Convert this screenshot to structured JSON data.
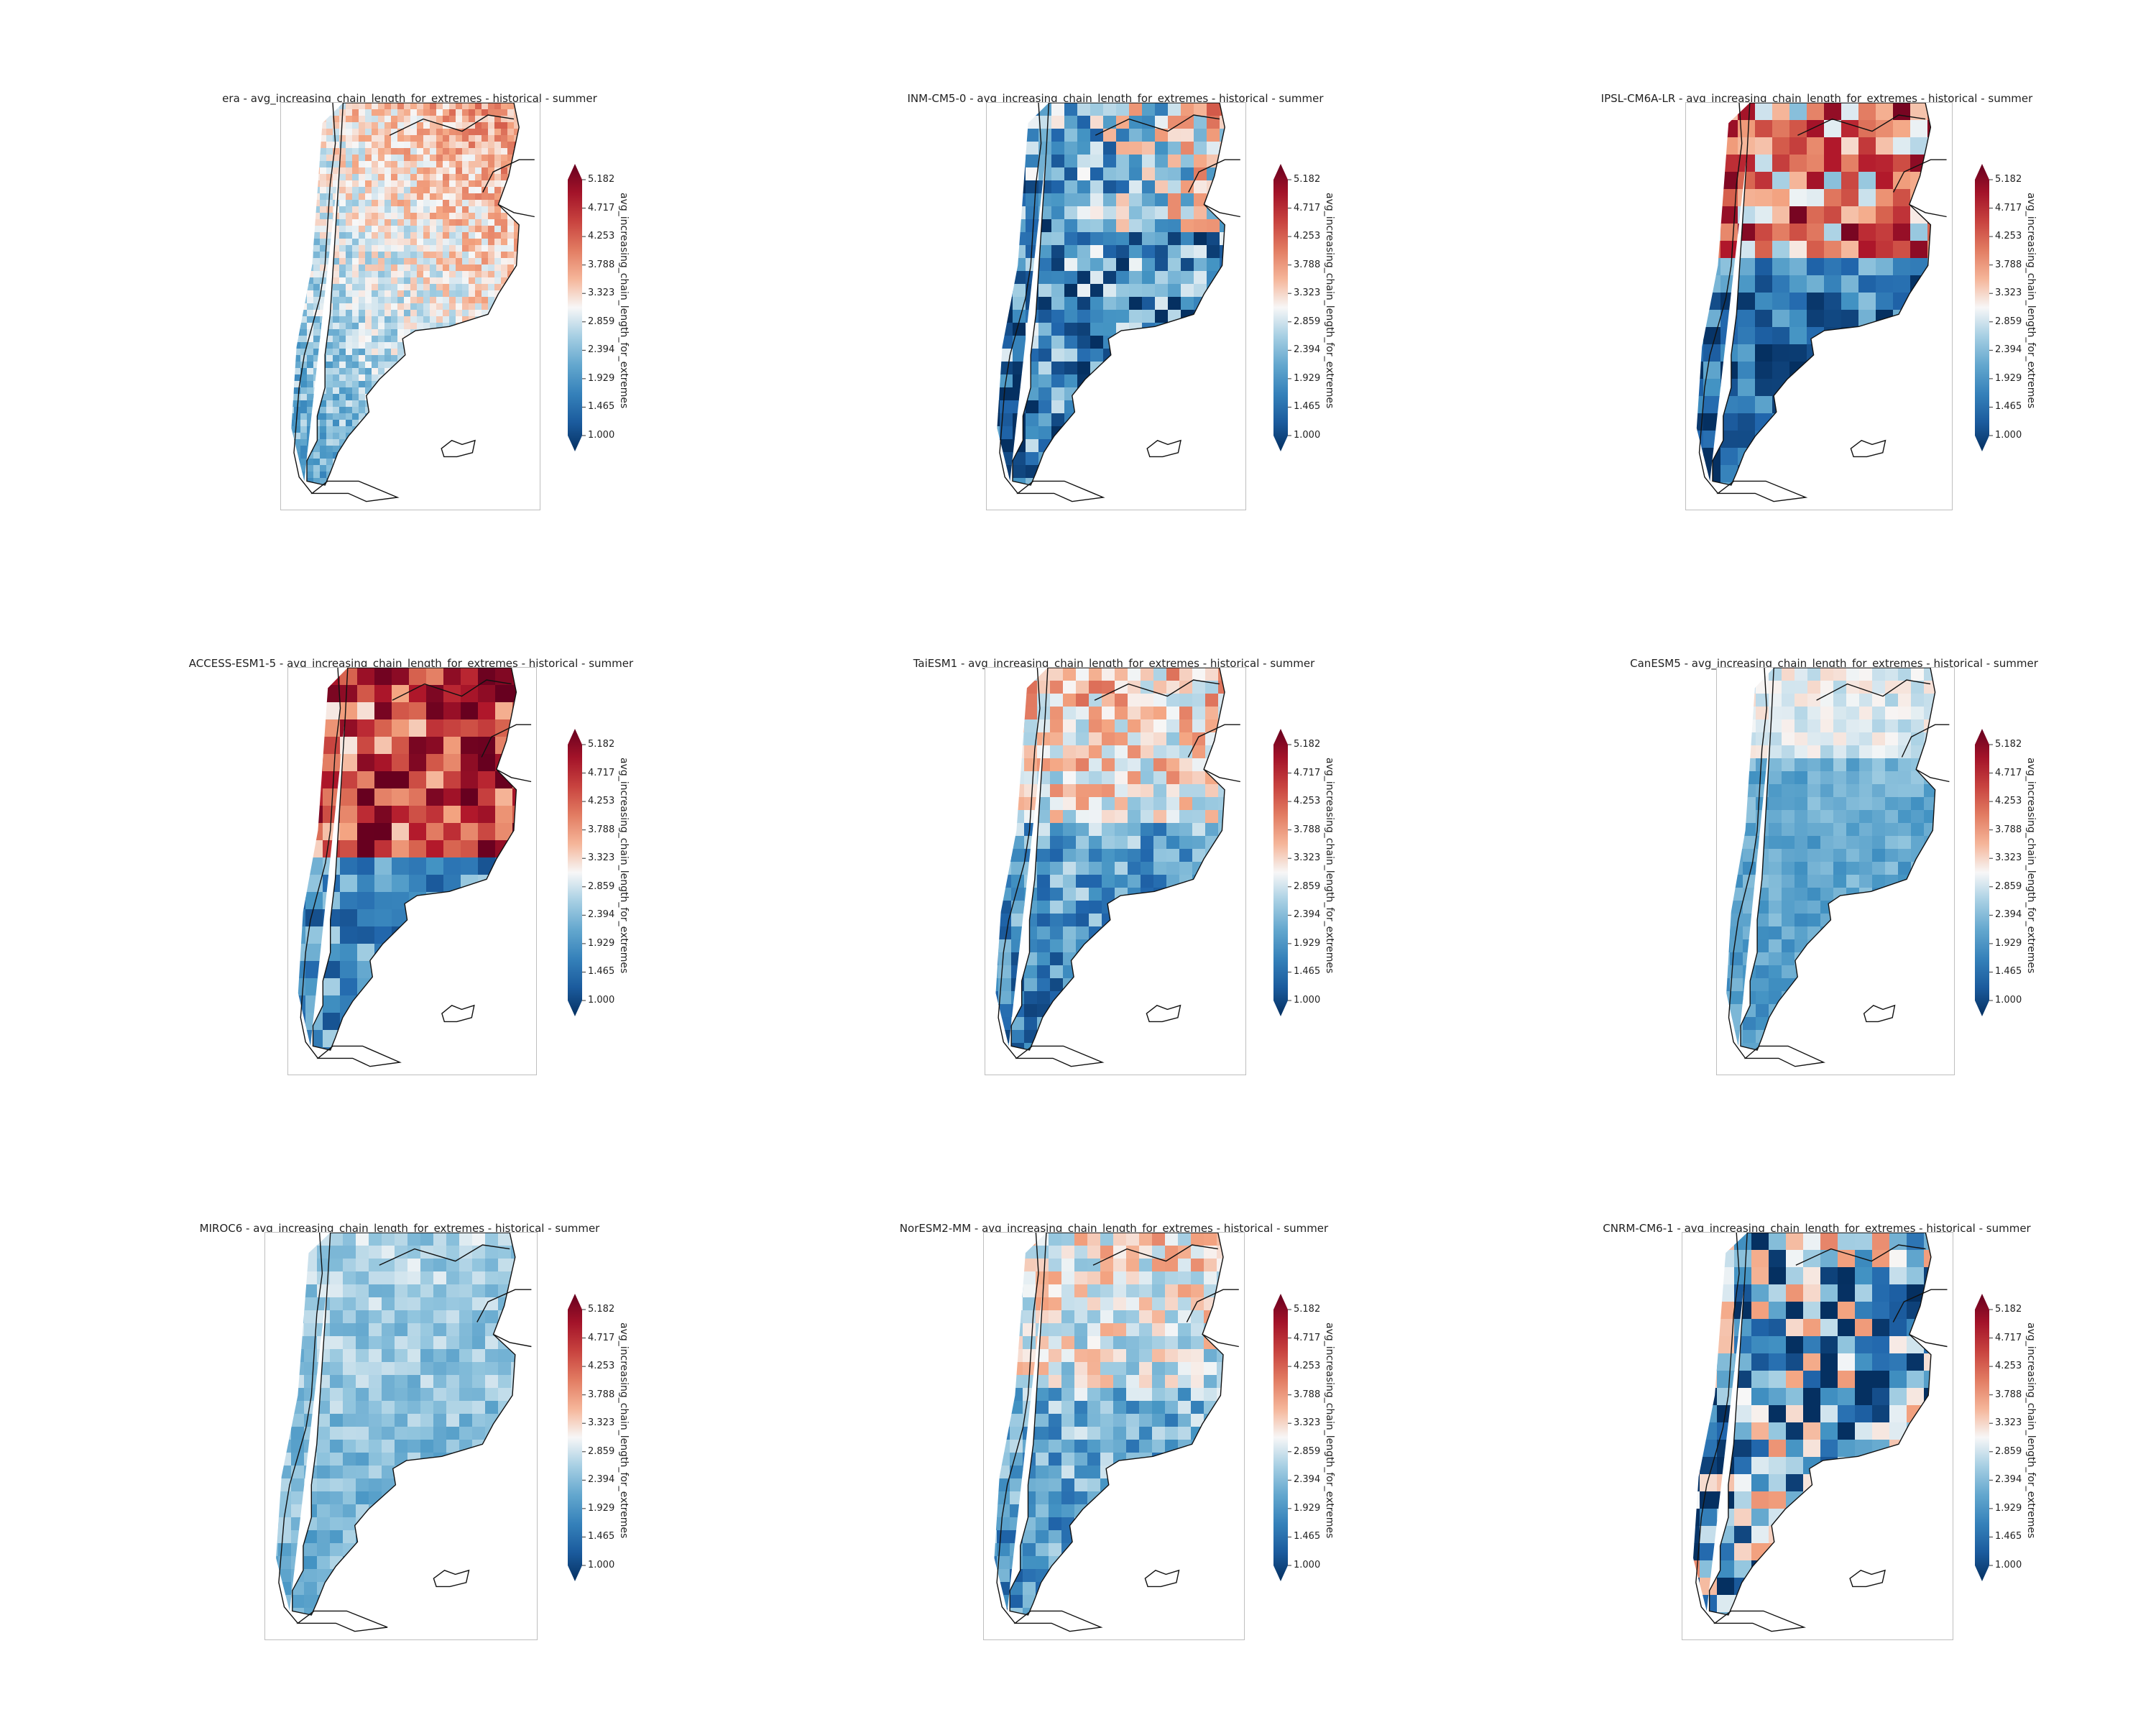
{
  "figure": {
    "colormap": "RdBu_r",
    "colorbar_ticks": [
      "5.182",
      "4.717",
      "4.253",
      "3.788",
      "3.323",
      "2.859",
      "2.394",
      "1.929",
      "1.465",
      "1.000"
    ],
    "colorbar_label": "avg_increasing_chain_length_for_extremes",
    "panels": [
      {
        "title": "era - avg_increasing_chain_length_for_extremes - historical - summer",
        "pattern": "era"
      },
      {
        "title": "INM-CM5-0 - avg_increasing_chain_length_for_extremes - historical - summer",
        "pattern": "inm"
      },
      {
        "title": "IPSL-CM6A-LR - avg_increasing_chain_length_for_extremes - historical - summer",
        "pattern": "ipsl"
      },
      {
        "title": "ACCESS-ESM1-5 - avg_increasing_chain_length_for_extremes - historical - summer",
        "pattern": "access"
      },
      {
        "title": "TaiESM1 - avg_increasing_chain_length_for_extremes - historical - summer",
        "pattern": "tai"
      },
      {
        "title": "CanESM5 - avg_increasing_chain_length_for_extremes - historical - summer",
        "pattern": "can"
      },
      {
        "title": "MIROC6 - avg_increasing_chain_length_for_extremes - historical - summer",
        "pattern": "miroc"
      },
      {
        "title": "NorESM2-MM - avg_increasing_chain_length_for_extremes - historical - summer",
        "pattern": "nor"
      },
      {
        "title": "CNRM-CM6-1 - avg_increasing_chain_length_for_extremes - historical - summer",
        "pattern": "cnrm"
      }
    ]
  }
}
